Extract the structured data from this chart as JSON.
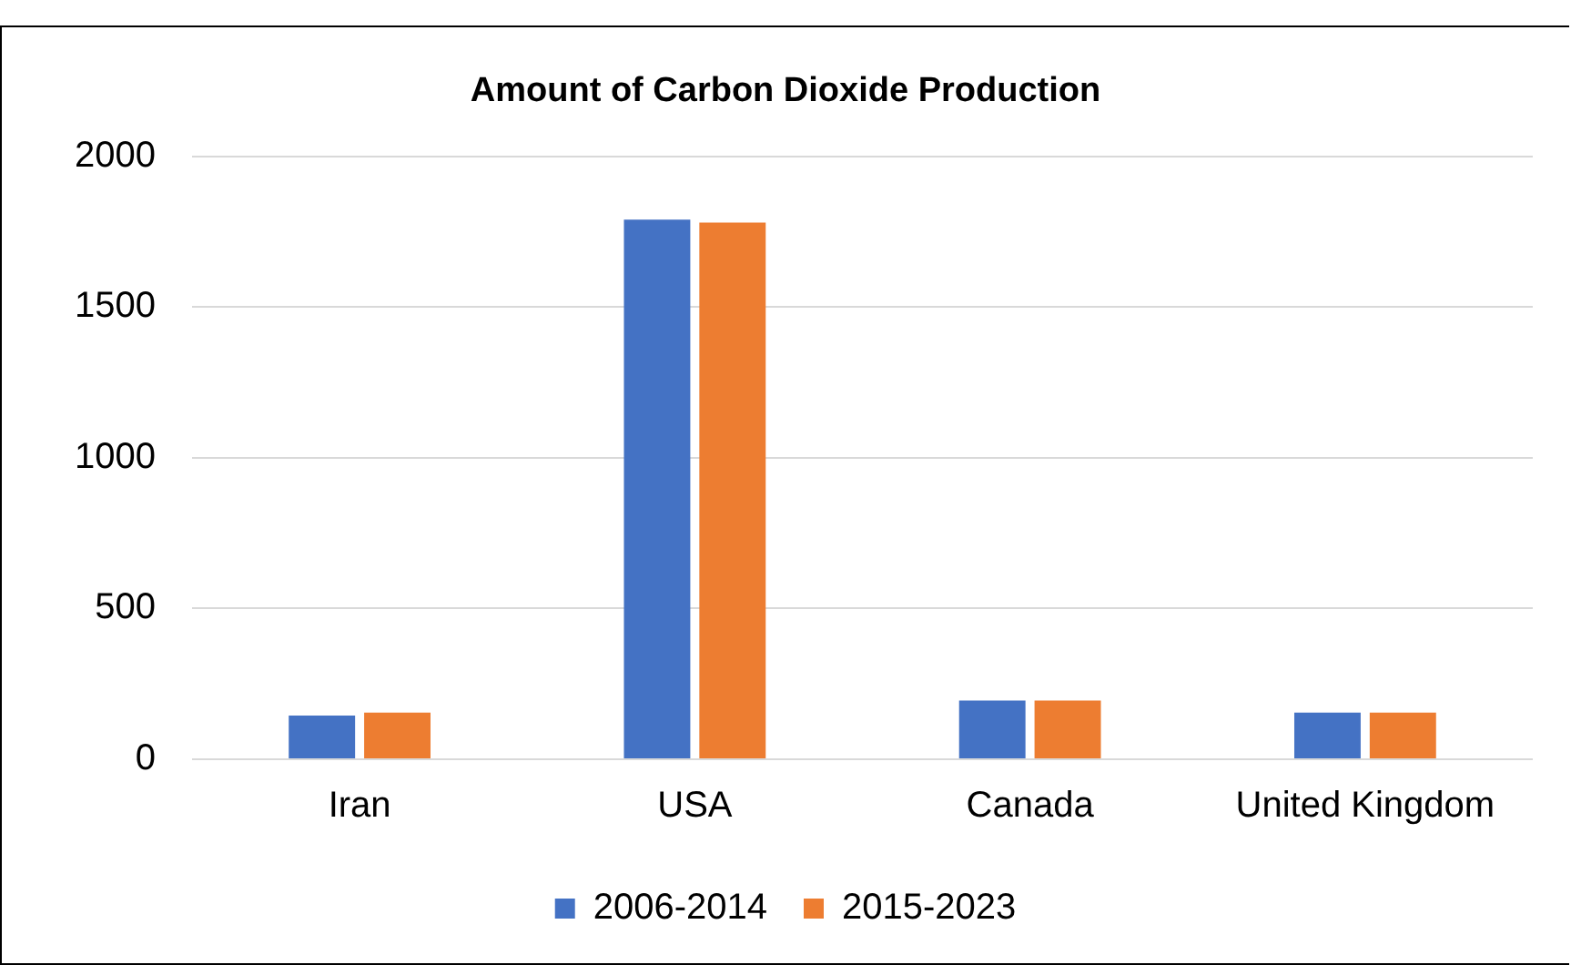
{
  "chart_data": {
    "type": "bar",
    "title": "Amount of Carbon Dioxide Production",
    "categories": [
      "Iran",
      "USA",
      "Canada",
      "United Kingdom"
    ],
    "series": [
      {
        "name": "2006-2014",
        "color": "#4472c4",
        "values": [
          145,
          1790,
          195,
          155
        ]
      },
      {
        "name": "2015-2023",
        "color": "#ed7d31",
        "values": [
          155,
          1780,
          195,
          155
        ]
      }
    ],
    "ylim": [
      0,
      2000
    ],
    "yticks": [
      0,
      500,
      1000,
      1500,
      2000
    ],
    "grid": "y",
    "legend": "bottom"
  }
}
